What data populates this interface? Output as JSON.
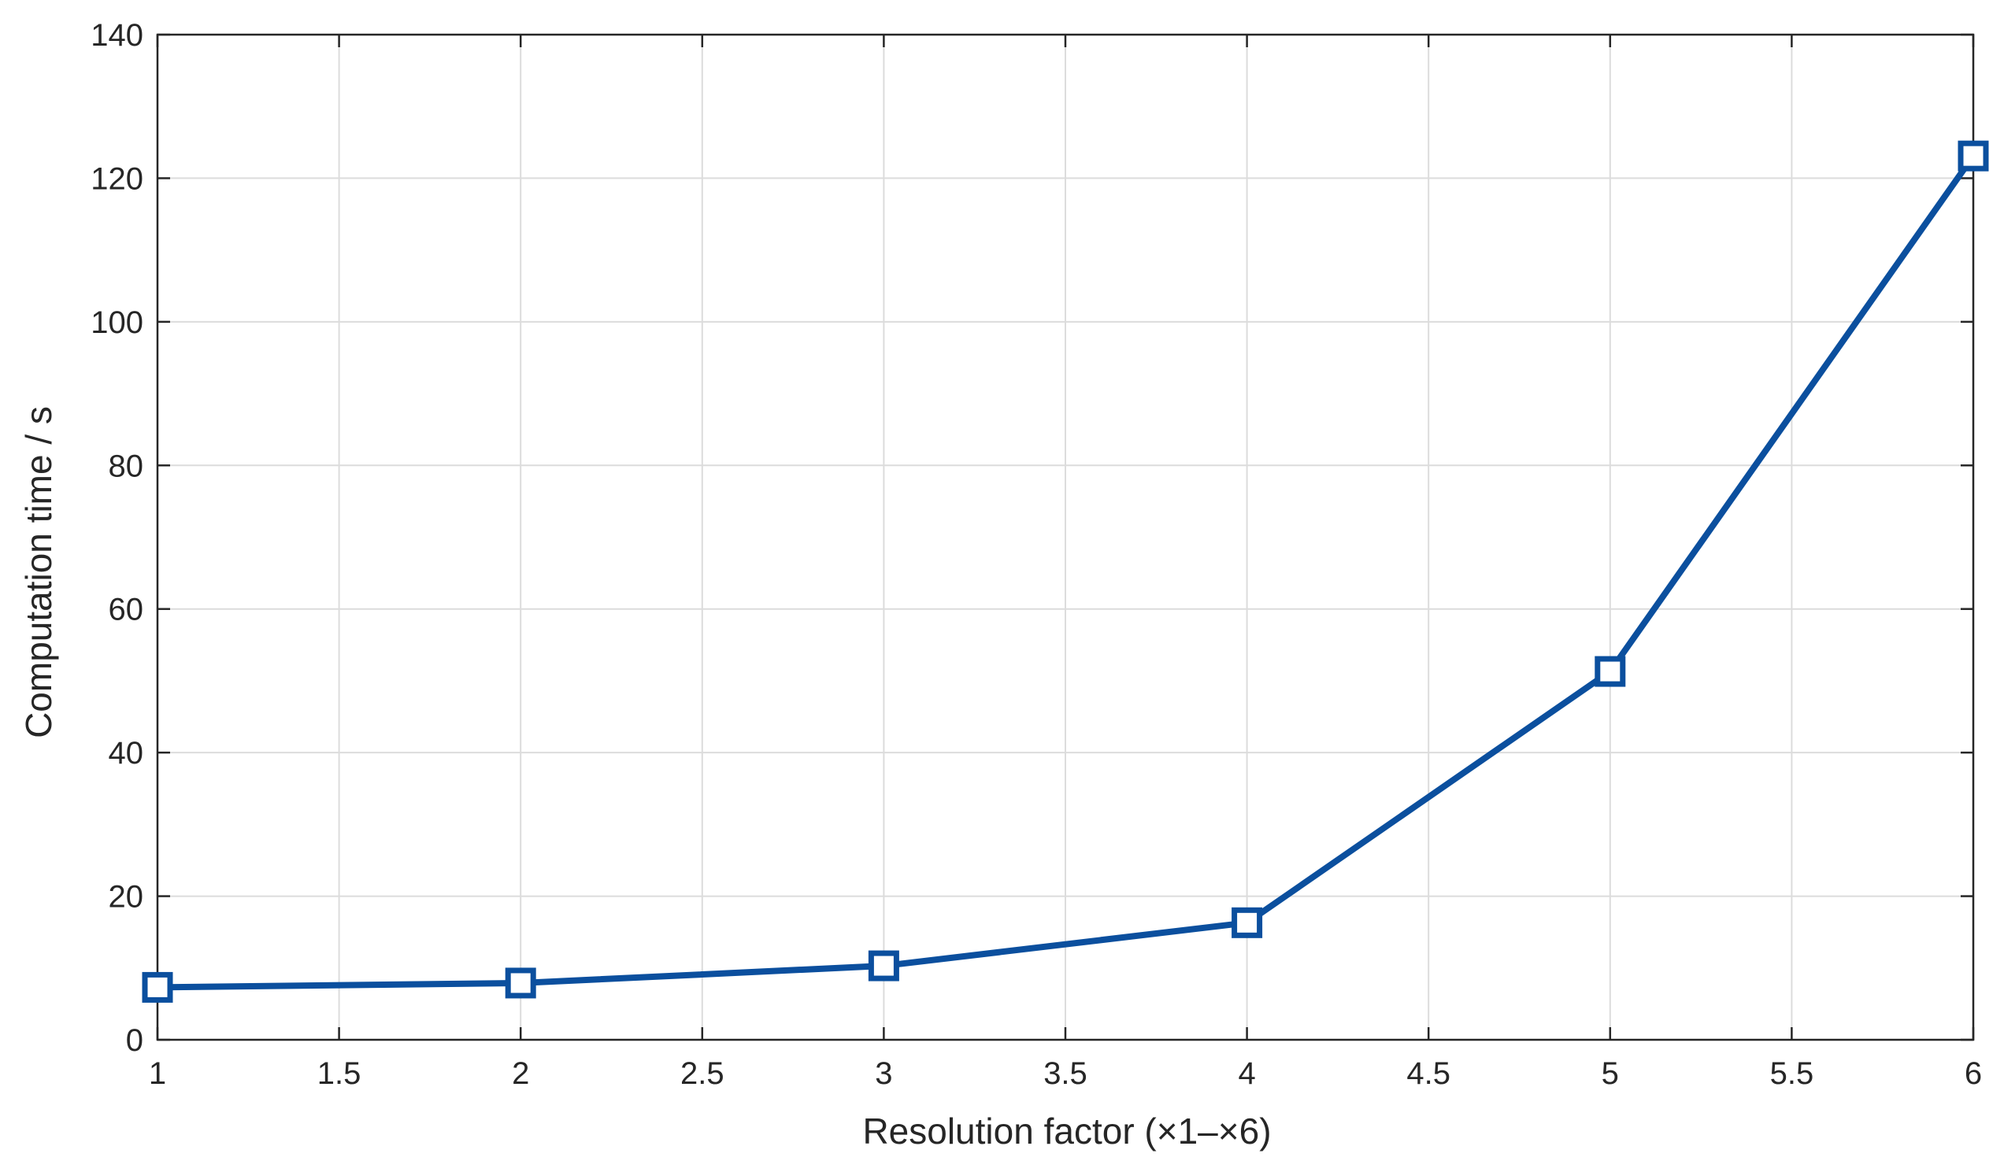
{
  "chart_data": {
    "type": "line",
    "title": "",
    "xlabel": "Resolution factor (×1–×6)",
    "ylabel": "Computation time / s",
    "xlim": [
      1,
      6
    ],
    "ylim": [
      0,
      140
    ],
    "xticks": [
      1,
      1.5,
      2,
      2.5,
      3,
      3.5,
      4,
      4.5,
      5,
      5.5,
      6
    ],
    "xtick_labels": [
      "1",
      "1.5",
      "2",
      "2.5",
      "3",
      "3.5",
      "4",
      "4.5",
      "5",
      "5.5",
      "6"
    ],
    "yticks": [
      0,
      20,
      40,
      60,
      80,
      100,
      120,
      140
    ],
    "ytick_labels": [
      "0",
      "20",
      "40",
      "60",
      "80",
      "100",
      "120",
      "140"
    ],
    "grid": true,
    "series": [
      {
        "color": "#0b4f9e",
        "marker": "square",
        "x": [
          1,
          2,
          3,
          4,
          5,
          6
        ],
        "y": [
          7.3,
          7.9,
          10.3,
          16.3,
          51.3,
          123.1
        ]
      }
    ]
  }
}
